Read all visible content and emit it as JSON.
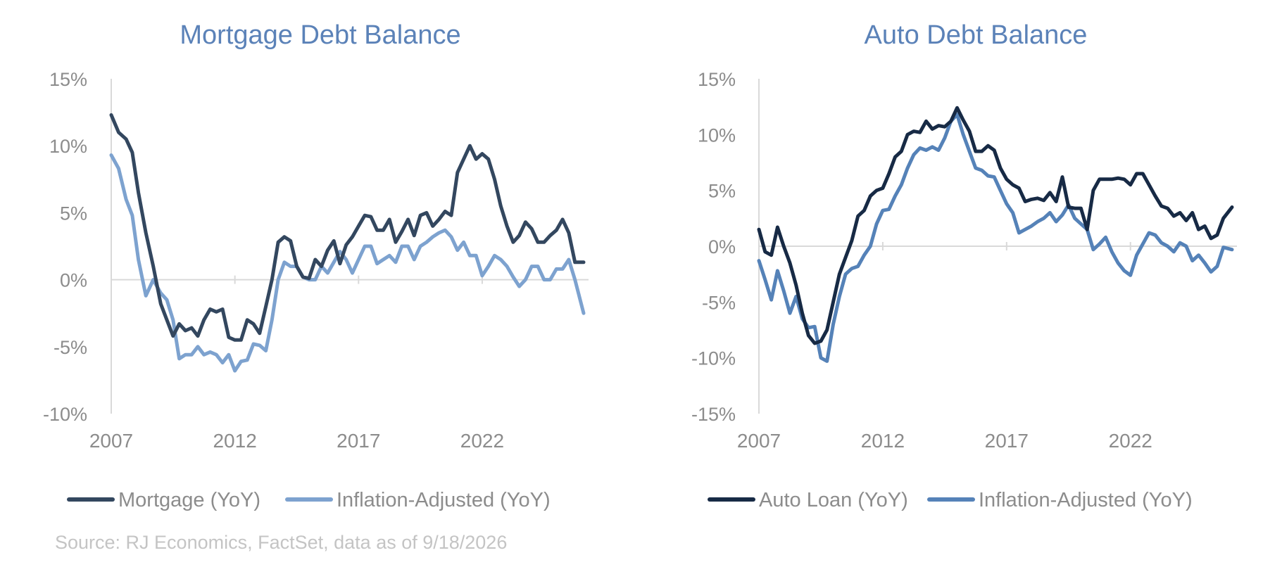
{
  "source": "Source: RJ Economics,  FactSet, data as of 9/18/2026",
  "colors": {
    "title": "#5b82b8",
    "axis_text": "#8c8c8c",
    "axis_line": "#d9d9d9"
  },
  "chart_data": [
    {
      "type": "line",
      "title": "Mortgage Debt Balance",
      "xlabel": "",
      "ylabel": "",
      "xlim": [
        2007,
        2026.3
      ],
      "ylim": [
        -10,
        15
      ],
      "x_ticks": [
        2007,
        2012,
        2017,
        2022
      ],
      "x_tick_labels": [
        "2007",
        "2012",
        "2017",
        "2022"
      ],
      "y_ticks": [
        -10,
        -5,
        0,
        5,
        10,
        15
      ],
      "y_tick_labels": [
        "-10%",
        "-5%",
        "0%",
        "5%",
        "10%",
        "15%"
      ],
      "zero_line": true,
      "legend_position": "bottom",
      "series": [
        {
          "name": "Mortgage (YoY)",
          "color": "#33475f",
          "x": [
            2007,
            2007.3,
            2007.6,
            2007.85,
            2008.1,
            2008.4,
            2008.7,
            2009,
            2009.25,
            2009.5,
            2009.75,
            2010,
            2010.25,
            2010.5,
            2010.75,
            2011,
            2011.25,
            2011.5,
            2011.75,
            2012,
            2012.25,
            2012.5,
            2012.75,
            2013,
            2013.25,
            2013.5,
            2013.75,
            2014,
            2014.25,
            2014.5,
            2014.75,
            2015,
            2015.25,
            2015.5,
            2015.75,
            2016,
            2016.25,
            2016.5,
            2016.75,
            2017,
            2017.25,
            2017.5,
            2017.75,
            2018,
            2018.25,
            2018.5,
            2018.75,
            2019,
            2019.25,
            2019.5,
            2019.75,
            2020,
            2020.25,
            2020.5,
            2020.75,
            2021,
            2021.25,
            2021.5,
            2021.75,
            2022,
            2022.25,
            2022.5,
            2022.75,
            2023,
            2023.25,
            2023.5,
            2023.75,
            2024,
            2024.25,
            2024.5,
            2024.75,
            2025,
            2025.25,
            2025.5,
            2025.75,
            2026.1
          ],
          "values": [
            12.3,
            11,
            10.5,
            9.5,
            6.5,
            3.5,
            1,
            -1.8,
            -3,
            -4.2,
            -3.3,
            -3.8,
            -3.6,
            -4.2,
            -3,
            -2.2,
            -2.4,
            -2.2,
            -4.3,
            -4.5,
            -4.5,
            -3,
            -3.3,
            -4,
            -2,
            0,
            2.8,
            3.2,
            2.9,
            1,
            0.2,
            0.1,
            1.5,
            1,
            2.2,
            2.9,
            1.2,
            2.6,
            3.2,
            4,
            4.8,
            4.7,
            3.7,
            3.7,
            4.5,
            2.8,
            3.6,
            4.5,
            3.3,
            4.8,
            5,
            4,
            4.5,
            5.1,
            4.8,
            8,
            9,
            10,
            9,
            9.4,
            9,
            7.5,
            5.5,
            4,
            2.8,
            3.3,
            4.3,
            3.8,
            2.8,
            2.8,
            3.3,
            3.7,
            4.5,
            3.5,
            1.3,
            1.3
          ]
        },
        {
          "name": "Inflation-Adjusted (YoY)",
          "color": "#7da2cf",
          "x": [
            2007,
            2007.3,
            2007.6,
            2007.85,
            2008.1,
            2008.4,
            2008.7,
            2009,
            2009.25,
            2009.5,
            2009.75,
            2010,
            2010.25,
            2010.5,
            2010.75,
            2011,
            2011.25,
            2011.5,
            2011.75,
            2012,
            2012.25,
            2012.5,
            2012.75,
            2013,
            2013.25,
            2013.5,
            2013.75,
            2014,
            2014.25,
            2014.5,
            2014.75,
            2015,
            2015.25,
            2015.5,
            2015.75,
            2016,
            2016.25,
            2016.5,
            2016.75,
            2017,
            2017.25,
            2017.5,
            2017.75,
            2018,
            2018.25,
            2018.5,
            2018.75,
            2019,
            2019.25,
            2019.5,
            2019.75,
            2020,
            2020.25,
            2020.5,
            2020.75,
            2021,
            2021.25,
            2021.5,
            2021.75,
            2022,
            2022.25,
            2022.5,
            2022.75,
            2023,
            2023.25,
            2023.5,
            2023.75,
            2024,
            2024.25,
            2024.5,
            2024.75,
            2025,
            2025.25,
            2025.5,
            2025.75,
            2026.1
          ],
          "values": [
            9.3,
            8.3,
            6,
            4.8,
            1.5,
            -1.2,
            0,
            -1,
            -1.5,
            -3,
            -5.9,
            -5.6,
            -5.6,
            -5,
            -5.6,
            -5.4,
            -5.6,
            -6.2,
            -5.6,
            -6.8,
            -6.1,
            -6,
            -4.8,
            -4.9,
            -5.3,
            -3,
            0,
            1.3,
            1,
            1,
            0.2,
            0,
            0,
            1,
            0.5,
            1.3,
            2.1,
            1.5,
            0.5,
            1.5,
            2.5,
            2.5,
            1.2,
            1.5,
            1.8,
            1.3,
            2.5,
            2.5,
            1.5,
            2.5,
            2.8,
            3.2,
            3.5,
            3.7,
            3.2,
            2.2,
            2.8,
            1.8,
            1.8,
            0.3,
            1,
            1.8,
            1.5,
            1,
            0.2,
            -0.5,
            0,
            1,
            1,
            0,
            0,
            0.8,
            0.8,
            1.5,
            0,
            -2.5
          ]
        }
      ]
    },
    {
      "type": "line",
      "title": "Auto Debt Balance",
      "xlabel": "",
      "ylabel": "",
      "xlim": [
        2007,
        2026.3
      ],
      "ylim": [
        -15,
        15
      ],
      "x_ticks": [
        2007,
        2012,
        2017,
        2022
      ],
      "x_tick_labels": [
        "2007",
        "2012",
        "2017",
        "2022"
      ],
      "y_ticks": [
        -15,
        -10,
        -5,
        0,
        5,
        10,
        15
      ],
      "y_tick_labels": [
        "-15%",
        "-10%",
        "-5%",
        "0%",
        "5%",
        "10%",
        "15%"
      ],
      "zero_line": true,
      "legend_position": "bottom",
      "series": [
        {
          "name": "Auto Loan (YoY)",
          "color": "#172a45",
          "x": [
            2007,
            2007.25,
            2007.5,
            2007.75,
            2008,
            2008.25,
            2008.5,
            2008.75,
            2009,
            2009.25,
            2009.5,
            2009.75,
            2010,
            2010.25,
            2010.5,
            2010.75,
            2011,
            2011.25,
            2011.5,
            2011.75,
            2012,
            2012.25,
            2012.5,
            2012.75,
            2013,
            2013.25,
            2013.5,
            2013.75,
            2014,
            2014.25,
            2014.5,
            2014.75,
            2015,
            2015.25,
            2015.5,
            2015.75,
            2016,
            2016.25,
            2016.5,
            2016.75,
            2017,
            2017.25,
            2017.5,
            2017.75,
            2018,
            2018.25,
            2018.5,
            2018.75,
            2019,
            2019.25,
            2019.5,
            2019.75,
            2020,
            2020.25,
            2020.5,
            2020.75,
            2021,
            2021.25,
            2021.5,
            2021.75,
            2022,
            2022.25,
            2022.5,
            2022.75,
            2023,
            2023.25,
            2023.5,
            2023.75,
            2024,
            2024.25,
            2024.5,
            2024.75,
            2025,
            2025.25,
            2025.5,
            2025.75,
            2026.1
          ],
          "values": [
            1.5,
            -0.5,
            -0.8,
            1.7,
            0,
            -1.5,
            -3.5,
            -6,
            -8,
            -8.7,
            -8.5,
            -7.5,
            -5,
            -2.5,
            -1,
            0.5,
            2.7,
            3.2,
            4.5,
            5,
            5.2,
            6.5,
            8,
            8.5,
            10,
            10.3,
            10.2,
            11.2,
            10.5,
            10.8,
            10.7,
            11.2,
            12.4,
            11.3,
            10.3,
            8.5,
            8.5,
            9,
            8.6,
            7,
            6,
            5.5,
            5.2,
            4,
            4.2,
            4.3,
            4.1,
            4.8,
            4,
            6.2,
            3.5,
            3.4,
            3.4,
            1.5,
            5,
            6,
            6,
            6,
            6.1,
            6,
            5.5,
            6.5,
            6.5,
            5.5,
            4.5,
            3.6,
            3.4,
            2.7,
            3,
            2.3,
            3,
            1.5,
            1.8,
            0.7,
            1,
            2.5,
            3.5
          ]
        },
        {
          "name": "Inflation-Adjusted (YoY)",
          "color": "#5582b8",
          "x": [
            2007,
            2007.25,
            2007.5,
            2007.75,
            2008,
            2008.25,
            2008.5,
            2008.75,
            2009,
            2009.25,
            2009.5,
            2009.75,
            2010,
            2010.25,
            2010.5,
            2010.75,
            2011,
            2011.25,
            2011.5,
            2011.75,
            2012,
            2012.25,
            2012.5,
            2012.75,
            2013,
            2013.25,
            2013.5,
            2013.75,
            2014,
            2014.25,
            2014.5,
            2014.75,
            2015,
            2015.25,
            2015.5,
            2015.75,
            2016,
            2016.25,
            2016.5,
            2016.75,
            2017,
            2017.25,
            2017.5,
            2017.75,
            2018,
            2018.25,
            2018.5,
            2018.75,
            2019,
            2019.25,
            2019.5,
            2019.75,
            2020,
            2020.25,
            2020.5,
            2020.75,
            2021,
            2021.25,
            2021.5,
            2021.75,
            2022,
            2022.25,
            2022.5,
            2022.75,
            2023,
            2023.25,
            2023.5,
            2023.75,
            2024,
            2024.25,
            2024.5,
            2024.75,
            2025,
            2025.25,
            2025.5,
            2025.75,
            2026.1
          ],
          "values": [
            -1.3,
            -3,
            -4.8,
            -2.2,
            -4,
            -6,
            -4.5,
            -6.5,
            -7.3,
            -7.2,
            -10,
            -10.3,
            -7,
            -4.5,
            -2.5,
            -2,
            -1.8,
            -0.8,
            0,
            2,
            3.2,
            3.3,
            4.5,
            5.5,
            7,
            8.2,
            8.8,
            8.6,
            8.9,
            8.6,
            9.7,
            11.2,
            11.8,
            10,
            8.5,
            7,
            6.8,
            6.3,
            6.2,
            5,
            3.8,
            3,
            1.2,
            1.5,
            1.8,
            2.2,
            2.5,
            3,
            2.2,
            2.8,
            3.7,
            2.5,
            2,
            1.5,
            -0.3,
            0.2,
            0.8,
            -0.5,
            -1.5,
            -2.2,
            -2.6,
            -0.8,
            0.2,
            1.2,
            1,
            0.3,
            0,
            -0.5,
            0.3,
            0,
            -1.3,
            -0.8,
            -1.5,
            -2.3,
            -1.8,
            -0.1,
            -0.3
          ]
        }
      ]
    }
  ]
}
